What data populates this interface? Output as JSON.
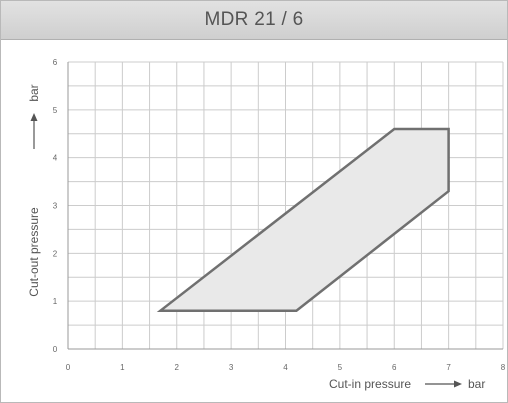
{
  "chart_data": {
    "type": "area",
    "title": "MDR 21 / 6",
    "xlabel": "Cut-in pressure",
    "xunit": "bar",
    "ylabel": "Cut-out pressure",
    "yunit": "bar",
    "xlim": [
      0,
      8
    ],
    "ylim": [
      0,
      6
    ],
    "xticks": [
      "0",
      "1",
      "2",
      "3",
      "4",
      "5",
      "6",
      "7",
      "8"
    ],
    "yticks": [
      "0",
      "1",
      "2",
      "3",
      "4",
      "5",
      "6"
    ],
    "grid": true,
    "series": [
      {
        "x": [
          1.7,
          4.2,
          7.0,
          7.0,
          6.0,
          1.7
        ],
        "y": [
          0.8,
          0.8,
          3.3,
          4.6,
          4.6,
          0.8
        ]
      }
    ],
    "colors": {
      "fill": "#e9e9e9",
      "outline": "#707070",
      "grid": "#cccccc"
    }
  }
}
